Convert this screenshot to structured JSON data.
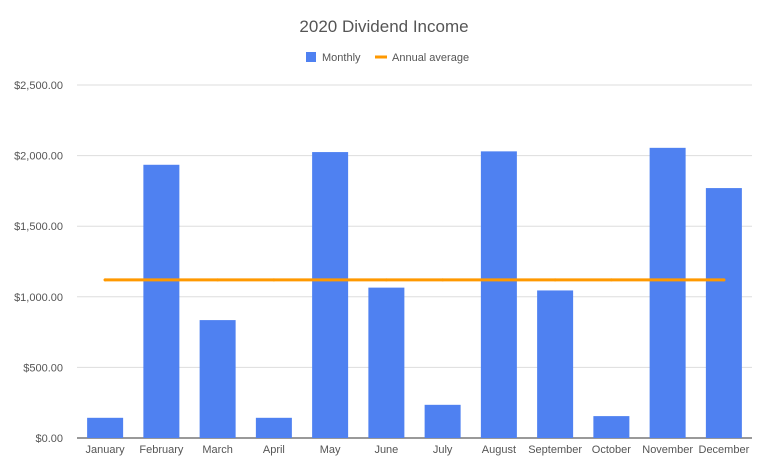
{
  "chart_data": {
    "type": "bar",
    "title": "2020 Dividend Income",
    "categories": [
      "January",
      "February",
      "March",
      "April",
      "May",
      "June",
      "July",
      "August",
      "September",
      "October",
      "November",
      "December"
    ],
    "series": [
      {
        "name": "Monthly",
        "type": "bar",
        "color": "#4f81f1",
        "values": [
          143,
          1935,
          835,
          143,
          2025,
          1065,
          235,
          2030,
          1045,
          155,
          2055,
          1770
        ]
      },
      {
        "name": "Annual average",
        "type": "line",
        "color": "#ff9900",
        "values": [
          1120,
          1120,
          1120,
          1120,
          1120,
          1120,
          1120,
          1120,
          1120,
          1120,
          1120,
          1120
        ]
      }
    ],
    "ylim": [
      0,
      2500
    ],
    "yticks": [
      0,
      500,
      1000,
      1500,
      2000,
      2500
    ],
    "ytick_labels": [
      "$0.00",
      "$500.00",
      "$1,000.00",
      "$1,500.00",
      "$2,000.00",
      "$2,500.00"
    ],
    "grid": true,
    "legend_position": "top",
    "xlabel": "",
    "ylabel": ""
  }
}
